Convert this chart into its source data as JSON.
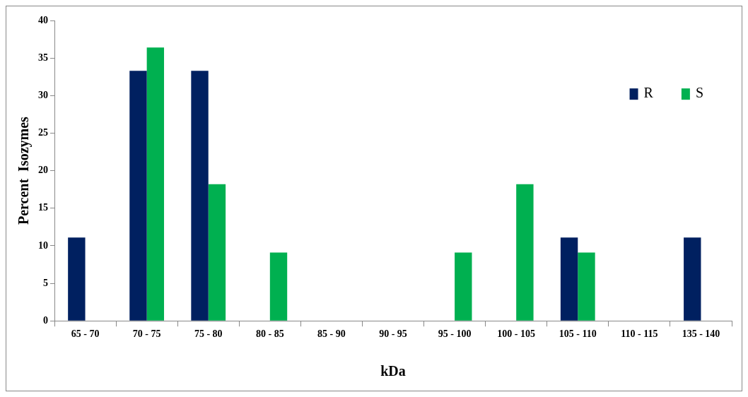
{
  "chart_data": {
    "type": "bar",
    "xlabel": "kDa",
    "ylabel": "Percent  Isozymes",
    "categories": [
      "65 - 70",
      "70 - 75",
      "75 - 80",
      "80 - 85",
      "85 - 90",
      "90 - 95",
      "95 - 100",
      "100 - 105",
      "105 - 110",
      "110 - 115",
      "135 - 140"
    ],
    "series": [
      {
        "name": "R",
        "color": "#002060",
        "values": [
          11.1,
          33.3,
          33.3,
          0,
          0,
          0,
          0,
          0,
          11.1,
          0,
          11.1
        ]
      },
      {
        "name": "S",
        "color": "#00b050",
        "values": [
          0,
          36.4,
          18.2,
          9.1,
          0,
          0,
          9.1,
          18.2,
          9.1,
          0,
          0
        ]
      }
    ],
    "ylim": [
      0,
      40
    ],
    "yticks": [
      0,
      5,
      10,
      15,
      20,
      25,
      30,
      35,
      40
    ],
    "grid": false,
    "legend": "top right"
  }
}
